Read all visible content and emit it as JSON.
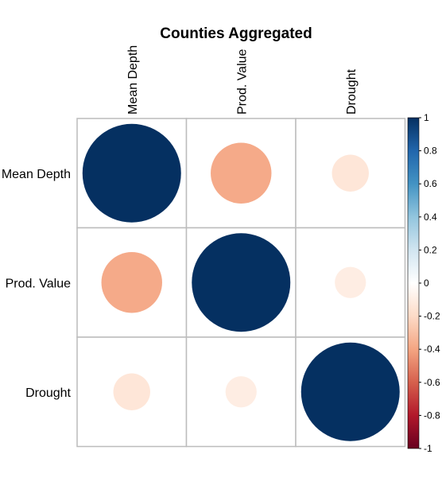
{
  "chart_data": {
    "type": "heatmap",
    "title": "Counties Aggregated",
    "variables": [
      "Mean Depth",
      "Prod. Value",
      "Drought"
    ],
    "matrix": [
      [
        1.0,
        -0.38,
        -0.14
      ],
      [
        -0.38,
        1.0,
        -0.1
      ],
      [
        -0.14,
        -0.1,
        1.0
      ]
    ],
    "colorbar": {
      "range": [
        -1,
        1
      ],
      "ticks": [
        "1",
        "0.8",
        "0.6",
        "0.4",
        "0.2",
        "0",
        "-0.2",
        "-0.4",
        "-0.6",
        "-0.8",
        "-1"
      ],
      "tick_values": [
        1,
        0.8,
        0.6,
        0.4,
        0.2,
        0,
        -0.2,
        -0.4,
        -0.6,
        -0.8,
        -1
      ],
      "colors": [
        "#67001F",
        "#B2182B",
        "#D6604D",
        "#F4A582",
        "#FDDBC7",
        "#FFFFFF",
        "#D1E5F0",
        "#92C5DE",
        "#4393C3",
        "#2166AC",
        "#053061"
      ]
    },
    "grid": true,
    "legend_position": "right"
  }
}
